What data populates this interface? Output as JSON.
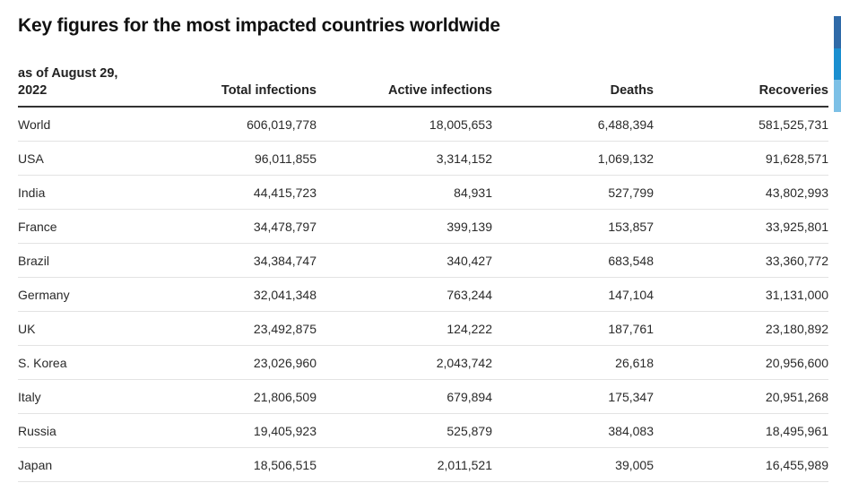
{
  "title": "Key figures for the most impacted countries worldwide",
  "colors": {
    "indicator": [
      "#2f6aa8",
      "#1a8fd0",
      "#7cc0e6"
    ],
    "header_rule": "#333333",
    "row_rule": "#e3e3e3"
  },
  "chart_data": {
    "type": "table",
    "date_label": "as of August 29, 2022",
    "columns": [
      "Total infections",
      "Active infections",
      "Deaths",
      "Recoveries"
    ],
    "rows": [
      {
        "name": "World",
        "values": [
          "606,019,778",
          "18,005,653",
          "6,488,394",
          "581,525,731"
        ]
      },
      {
        "name": "USA",
        "values": [
          "96,011,855",
          "3,314,152",
          "1,069,132",
          "91,628,571"
        ]
      },
      {
        "name": "India",
        "values": [
          "44,415,723",
          "84,931",
          "527,799",
          "43,802,993"
        ]
      },
      {
        "name": "France",
        "values": [
          "34,478,797",
          "399,139",
          "153,857",
          "33,925,801"
        ]
      },
      {
        "name": "Brazil",
        "values": [
          "34,384,747",
          "340,427",
          "683,548",
          "33,360,772"
        ]
      },
      {
        "name": "Germany",
        "values": [
          "32,041,348",
          "763,244",
          "147,104",
          "31,131,000"
        ]
      },
      {
        "name": "UK",
        "values": [
          "23,492,875",
          "124,222",
          "187,761",
          "23,180,892"
        ]
      },
      {
        "name": "S. Korea",
        "values": [
          "23,026,960",
          "2,043,742",
          "26,618",
          "20,956,600"
        ]
      },
      {
        "name": "Italy",
        "values": [
          "21,806,509",
          "679,894",
          "175,347",
          "20,951,268"
        ]
      },
      {
        "name": "Russia",
        "values": [
          "19,405,923",
          "525,879",
          "384,083",
          "18,495,961"
        ]
      },
      {
        "name": "Japan",
        "values": [
          "18,506,515",
          "2,011,521",
          "39,005",
          "16,455,989"
        ]
      }
    ]
  }
}
